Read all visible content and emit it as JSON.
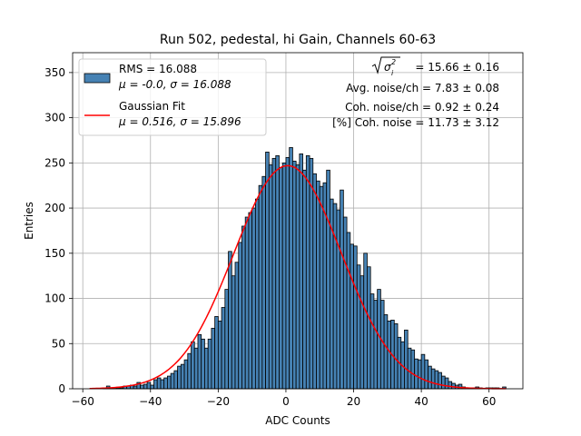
{
  "chart_data": {
    "type": "bar",
    "title": "Run 502, pedestal, hi Gain, Channels 60-63",
    "xlabel": "ADC Counts",
    "ylabel": "Entries",
    "xlim": [
      -63,
      70
    ],
    "ylim": [
      0,
      372
    ],
    "xticks": [
      -60,
      -40,
      -20,
      0,
      20,
      40,
      60
    ],
    "yticks": [
      0,
      50,
      100,
      150,
      200,
      250,
      300,
      350
    ],
    "grid": true,
    "bin_start": -58,
    "bin_width": 1,
    "values": [
      0,
      0,
      0,
      0,
      1,
      3,
      1,
      1,
      1,
      1,
      3,
      3,
      4,
      3,
      7,
      4,
      5,
      7,
      4,
      10,
      12,
      10,
      12,
      14,
      17,
      20,
      25,
      27,
      32,
      39,
      52,
      45,
      60,
      55,
      45,
      55,
      67,
      80,
      75,
      90,
      110,
      152,
      125,
      140,
      162,
      180,
      190,
      195,
      200,
      210,
      225,
      235,
      262,
      248,
      255,
      258,
      245,
      250,
      256,
      267,
      252,
      248,
      260,
      242,
      258,
      255,
      238,
      230,
      224,
      228,
      242,
      210,
      205,
      198,
      220,
      190,
      173,
      160,
      158,
      137,
      125,
      150,
      135,
      105,
      98,
      110,
      98,
      82,
      75,
      76,
      72,
      57,
      52,
      65,
      45,
      43,
      33,
      32,
      38,
      32,
      25,
      22,
      20,
      18,
      14,
      12,
      8,
      6,
      4,
      5,
      2,
      1,
      1,
      1,
      2,
      1,
      0,
      1,
      1,
      1,
      1,
      0,
      2
    ],
    "fit": {
      "label": "Gaussian Fit",
      "mu": 0.516,
      "sigma": 15.896,
      "amplitude": 247,
      "color": "#ff0000"
    },
    "bar_color": "#4682b4",
    "legend_position": "top-left",
    "legend": [
      {
        "line1": "RMS = 16.088",
        "line2_mu": "μ = -0.0, ",
        "line2_sigma": "σ = 16.088"
      },
      {
        "line1": "Gaussian Fit",
        "line2_mu": "μ = 0.516, ",
        "line2_sigma": "σ = 15.896"
      }
    ],
    "annotations": {
      "sigma_total": "= 15.66 ± 0.16",
      "avg_noise": "Avg. noise/ch = 7.83 ± 0.08",
      "coh_noise": "Coh. noise/ch = 0.92 ± 0.24",
      "coh_percent": "[%] Coh. noise = 11.73 ± 3.12"
    }
  }
}
